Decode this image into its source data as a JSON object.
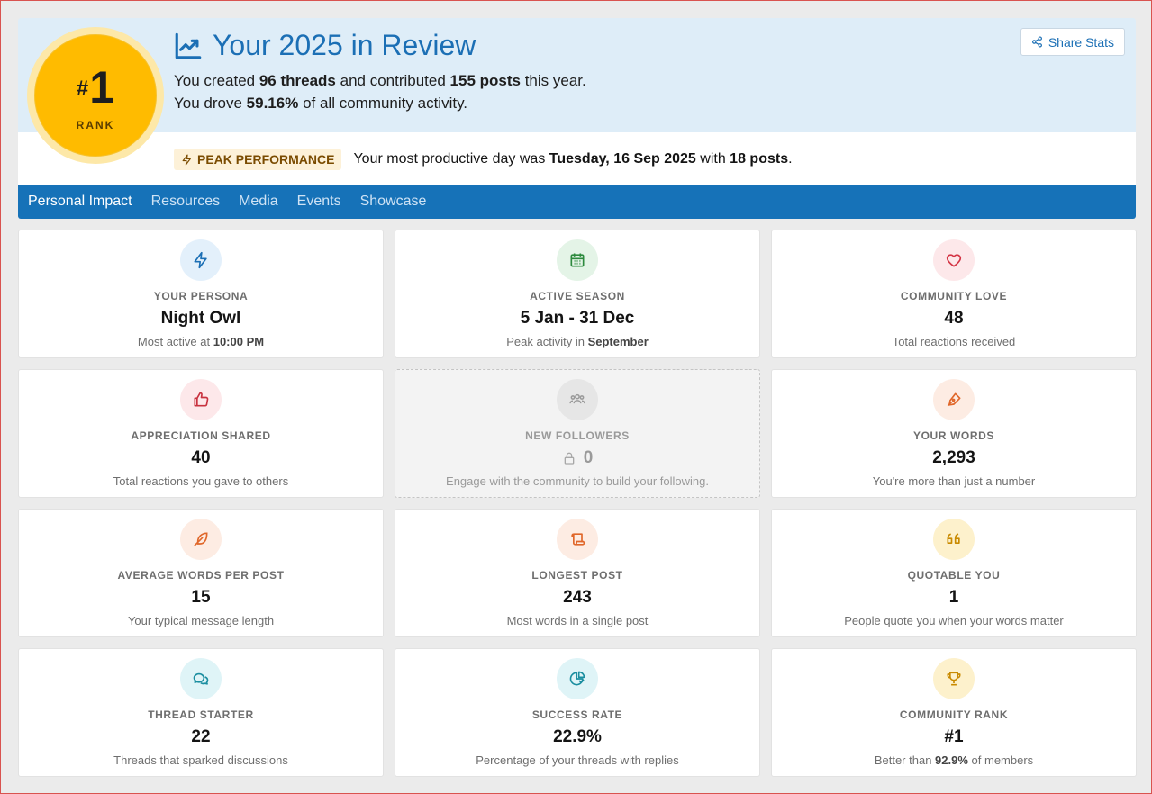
{
  "header": {
    "rank_hash": "#",
    "rank_value": "1",
    "rank_label": "RANK",
    "title": "Your 2025 in Review",
    "line1": {
      "pre": "You created ",
      "threads": "96 threads",
      "mid": " and contributed ",
      "posts": "155 posts",
      "post": " this year."
    },
    "line2": {
      "pre": "You drove ",
      "pct": "59.16%",
      "post": " of all community activity."
    },
    "share_label": "Share Stats",
    "peak": {
      "badge": "PEAK PERFORMANCE",
      "pre": "Your most productive day was ",
      "day": "Tuesday, 16 Sep 2025",
      "mid": " with ",
      "posts": "18 posts",
      "post": "."
    }
  },
  "tabs": [
    {
      "label": "Personal Impact"
    },
    {
      "label": "Resources"
    },
    {
      "label": "Media"
    },
    {
      "label": "Events"
    },
    {
      "label": "Showcase"
    }
  ],
  "cards": {
    "persona": {
      "label": "YOUR PERSONA",
      "value": "Night Owl",
      "sub_pre": "Most active at ",
      "sub_bold": "10:00 PM",
      "sub_post": ""
    },
    "season": {
      "label": "ACTIVE SEASON",
      "value": "5 Jan - 31 Dec",
      "sub_pre": "Peak activity in ",
      "sub_bold": "September",
      "sub_post": ""
    },
    "love": {
      "label": "COMMUNITY LOVE",
      "value": "48",
      "sub": "Total reactions received"
    },
    "appreciation": {
      "label": "APPRECIATION SHARED",
      "value": "40",
      "sub": "Total reactions you gave to others"
    },
    "followers": {
      "label": "NEW FOLLOWERS",
      "value": "0",
      "sub": "Engage with the community to build your following."
    },
    "words": {
      "label": "YOUR WORDS",
      "value": "2,293",
      "sub": "You're more than just a number"
    },
    "avg_words": {
      "label": "AVERAGE WORDS PER POST",
      "value": "15",
      "sub": "Your typical message length"
    },
    "longest": {
      "label": "LONGEST POST",
      "value": "243",
      "sub": "Most words in a single post"
    },
    "quotable": {
      "label": "QUOTABLE YOU",
      "value": "1",
      "sub": "People quote you when your words matter"
    },
    "starter": {
      "label": "THREAD STARTER",
      "value": "22",
      "sub": "Threads that sparked discussions"
    },
    "success": {
      "label": "SUCCESS RATE",
      "value": "22.9%",
      "sub": "Percentage of your threads with replies"
    },
    "rank": {
      "label": "COMMUNITY RANK",
      "value": "#1",
      "sub_pre": "Better than ",
      "sub_bold": "92.9%",
      "sub_post": " of members"
    }
  },
  "colors": {
    "accent": "#1672b8",
    "rank_gold": "#ffbb00"
  }
}
